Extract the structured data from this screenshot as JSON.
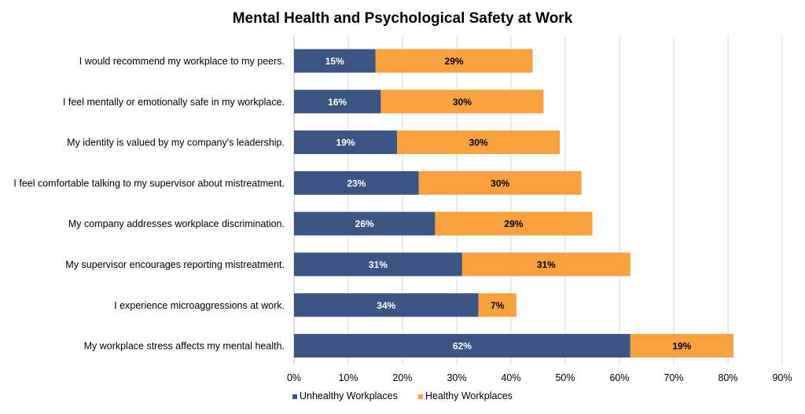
{
  "chart_data": {
    "type": "bar",
    "orientation": "horizontal",
    "stacked": true,
    "title": "Mental Health and Psychological Safety at Work",
    "xlabel": "",
    "ylabel": "",
    "xlim": [
      0,
      90
    ],
    "x_ticks": [
      0,
      10,
      20,
      30,
      40,
      50,
      60,
      70,
      80,
      90
    ],
    "x_tick_suffix": "%",
    "grid": "vertical",
    "legend_position": "bottom",
    "categories": [
      "I would recommend my workplace to my peers.",
      "I feel mentally or emotionally safe in my workplace.",
      "My identity is valued by my company's leadership.",
      "I feel comfortable talking to my supervisor about mistreatment.",
      "My company addresses workplace discrimination.",
      "My supervisor encourages reporting mistreatment.",
      "I experience microaggressions at work.",
      "My workplace stress affects my mental health."
    ],
    "series": [
      {
        "name": "Unhealthy Workplaces",
        "color": "#3A5584",
        "label_color": "#ffffff",
        "values": [
          15,
          16,
          19,
          23,
          26,
          31,
          34,
          62
        ]
      },
      {
        "name": "Healthy Workplaces",
        "color": "#F9A03F",
        "label_color": "#000000",
        "values": [
          29,
          30,
          30,
          30,
          29,
          31,
          7,
          19
        ]
      }
    ]
  }
}
